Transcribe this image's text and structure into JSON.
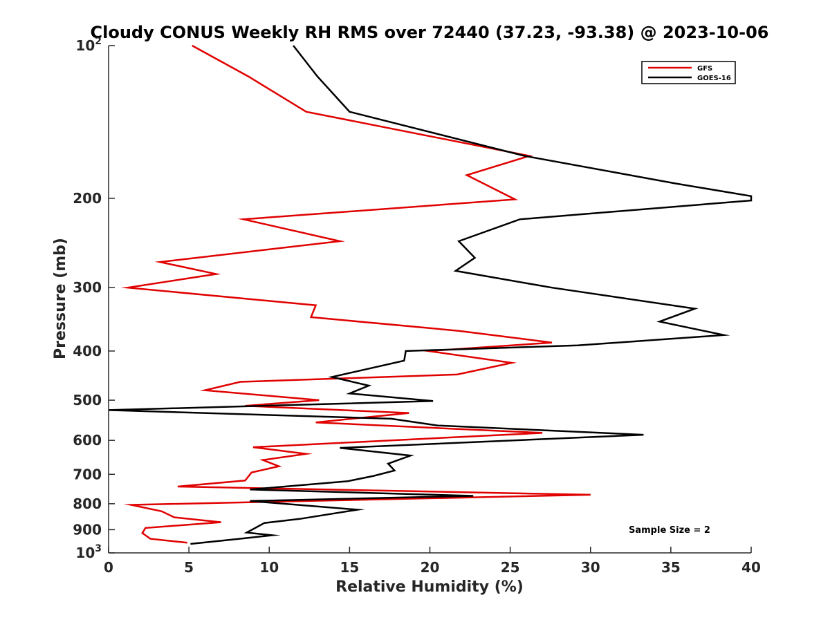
{
  "chart_data": {
    "type": "line",
    "title": "Cloudy CONUS Weekly RH RMS over 72440 (37.23, -93.38) @ 2023-10-06",
    "xlabel": "Relative Humidity (%)",
    "ylabel": "Pressure (mb)",
    "xlim": [
      0,
      40
    ],
    "ylim": [
      100,
      1000
    ],
    "y_scale": "log",
    "y_reversed": true,
    "x_ticks": [
      0,
      5,
      10,
      15,
      20,
      25,
      30,
      35,
      40
    ],
    "y_ticks": [
      {
        "value": 100,
        "label": "10",
        "exp": "2"
      },
      {
        "value": 200,
        "label": "200"
      },
      {
        "value": 300,
        "label": "300"
      },
      {
        "value": 400,
        "label": "400"
      },
      {
        "value": 500,
        "label": "500"
      },
      {
        "value": 600,
        "label": "600"
      },
      {
        "value": 700,
        "label": "700"
      },
      {
        "value": 800,
        "label": "800"
      },
      {
        "value": 900,
        "label": "900"
      },
      {
        "value": 1000,
        "label": "10",
        "exp": "3"
      }
    ],
    "grid": false,
    "legend_position": "top-right",
    "annotation": "Sample Size = 2",
    "series": [
      {
        "name": "GFS",
        "color": "#e00000",
        "points": [
          [
            5.2,
            100
          ],
          [
            8.7,
            115
          ],
          [
            12.3,
            135
          ],
          [
            26.2,
            165
          ],
          [
            22.3,
            180
          ],
          [
            25.3,
            201
          ],
          [
            8.4,
            220
          ],
          [
            14.4,
            243
          ],
          [
            3.2,
            267
          ],
          [
            6.7,
            282
          ],
          [
            1.2,
            300
          ],
          [
            12.9,
            325
          ],
          [
            12.6,
            343
          ],
          [
            21.8,
            365
          ],
          [
            27.6,
            385
          ],
          [
            19.9,
            400
          ],
          [
            25.1,
            422
          ],
          [
            21.7,
            445
          ],
          [
            8.2,
            460
          ],
          [
            6.0,
            478
          ],
          [
            13.1,
            500
          ],
          [
            8.5,
            513
          ],
          [
            18.7,
            530
          ],
          [
            12.9,
            553
          ],
          [
            27.0,
            580
          ],
          [
            9.0,
            619
          ],
          [
            12.3,
            638
          ],
          [
            9.6,
            656
          ],
          [
            10.6,
            675
          ],
          [
            8.9,
            694
          ],
          [
            8.5,
            720
          ],
          [
            4.3,
            740
          ],
          [
            30.0,
            768
          ],
          [
            1.4,
            804
          ],
          [
            3.3,
            828
          ],
          [
            4.1,
            851
          ],
          [
            7.0,
            870
          ],
          [
            2.3,
            893
          ],
          [
            2.1,
            914
          ],
          [
            2.6,
            938
          ],
          [
            4.9,
            955
          ]
        ]
      },
      {
        "name": "GOES-16",
        "color": "#000000",
        "points": [
          [
            11.5,
            100
          ],
          [
            13.0,
            115
          ],
          [
            15.0,
            135
          ],
          [
            25.9,
            165
          ],
          [
            35.3,
            187
          ],
          [
            40.0,
            198
          ],
          [
            40.0,
            202
          ],
          [
            25.6,
            220
          ],
          [
            21.8,
            243
          ],
          [
            22.8,
            262
          ],
          [
            21.6,
            278
          ],
          [
            27.6,
            300
          ],
          [
            36.5,
            330
          ],
          [
            34.3,
            350
          ],
          [
            38.3,
            372
          ],
          [
            29.2,
            390
          ],
          [
            18.5,
            400
          ],
          [
            18.4,
            418
          ],
          [
            13.9,
            450
          ],
          [
            16.2,
            468
          ],
          [
            15.0,
            485
          ],
          [
            20.2,
            502
          ],
          [
            0.0,
            523
          ],
          [
            17.6,
            544
          ],
          [
            20.5,
            561
          ],
          [
            33.3,
            585
          ],
          [
            14.4,
            621
          ],
          [
            18.8,
            643
          ],
          [
            17.4,
            667
          ],
          [
            17.8,
            688
          ],
          [
            16.5,
            705
          ],
          [
            14.9,
            722
          ],
          [
            8.8,
            750
          ],
          [
            22.7,
            772
          ],
          [
            8.8,
            790
          ],
          [
            15.5,
            822
          ],
          [
            11.9,
            857
          ],
          [
            9.7,
            873
          ],
          [
            8.6,
            912
          ],
          [
            10.2,
            923
          ],
          [
            7.9,
            940
          ],
          [
            5.1,
            960
          ]
        ]
      }
    ]
  }
}
